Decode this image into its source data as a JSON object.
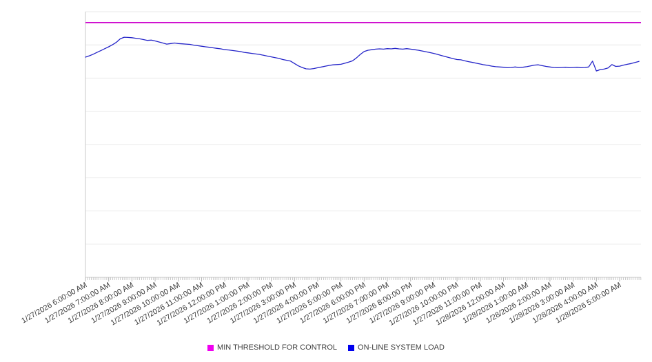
{
  "legend": {
    "items": [
      {
        "label": "MIN THRESHOLD FOR CONTROL",
        "swatch_color": "#f000f0"
      },
      {
        "label": "ON-LINE SYSTEM LOAD",
        "swatch_color": "#0000ee"
      }
    ]
  },
  "colors": {
    "threshold_line": "#cc00cc",
    "load_line": "#2222c8",
    "gridline": "#e8e8e8",
    "axis": "#c9c9c9",
    "tick": "#b5b5b5",
    "label_text": "#3c3c3c"
  },
  "chart_data": {
    "type": "line",
    "title": "",
    "xlabel": "",
    "ylabel": "",
    "x_tick_labels": [
      "1/27/2026 6:00:00 AM",
      "1/27/2026 7:00:00 AM",
      "1/27/2026 8:00:00 AM",
      "1/27/2026 9:00:00 AM",
      "1/27/2026 10:00:00 AM",
      "1/27/2026 11:00:00 AM",
      "1/27/2026 12:00:00 PM",
      "1/27/2026 1:00:00 PM",
      "1/27/2026 2:00:00 PM",
      "1/27/2026 3:00:00 PM",
      "1/27/2026 4:00:00 PM",
      "1/27/2026 5:00:00 PM",
      "1/27/2026 6:00:00 PM",
      "1/27/2026 7:00:00 PM",
      "1/27/2026 8:00:00 PM",
      "1/27/2026 9:00:00 PM",
      "1/27/2026 10:00:00 PM",
      "1/27/2026 11:00:00 PM",
      "1/28/2026 12:00:00 AM",
      "1/28/2026 1:00:00 AM",
      "1/28/2026 2:00:00 AM",
      "1/28/2026 3:00:00 AM",
      "1/28/2026 4:00:00 AM",
      "1/28/2026 5:00:00 AM"
    ],
    "x_label_rotation_deg": -30,
    "sample_interval_minutes": 10,
    "minor_tick_interval_minutes": 5,
    "ylim": [
      0,
      100
    ],
    "y_gridline_step": 12.5,
    "y_axis_labels_visible": false,
    "grid": "horizontal",
    "legend_position": "bottom",
    "series": [
      {
        "name": "MIN THRESHOLD FOR CONTROL",
        "type": "threshold",
        "value": 95.9
      },
      {
        "name": "ON-LINE SYSTEM LOAD",
        "type": "line",
        "values": [
          82.9,
          83.4,
          84.0,
          84.7,
          85.4,
          86.1,
          86.8,
          87.6,
          88.5,
          89.8,
          90.4,
          90.3,
          90.2,
          90.0,
          89.8,
          89.5,
          89.2,
          89.3,
          89.0,
          88.6,
          88.2,
          87.8,
          88.0,
          88.2,
          88.0,
          87.9,
          87.8,
          87.7,
          87.4,
          87.2,
          87.0,
          86.8,
          86.6,
          86.4,
          86.2,
          86.0,
          85.7,
          85.6,
          85.4,
          85.2,
          85.0,
          84.7,
          84.5,
          84.3,
          84.1,
          83.9,
          83.6,
          83.3,
          83.0,
          82.7,
          82.4,
          82.0,
          81.7,
          81.4,
          80.5,
          79.6,
          79.0,
          78.5,
          78.4,
          78.6,
          78.9,
          79.2,
          79.5,
          79.8,
          80.0,
          80.1,
          80.2,
          80.6,
          81.0,
          81.5,
          82.6,
          83.9,
          85.0,
          85.5,
          85.7,
          85.9,
          86.0,
          85.9,
          86.1,
          86.0,
          86.2,
          86.0,
          85.9,
          86.1,
          85.9,
          85.7,
          85.5,
          85.2,
          84.9,
          84.6,
          84.3,
          83.9,
          83.5,
          83.1,
          82.7,
          82.3,
          82.0,
          81.9,
          81.5,
          81.2,
          80.9,
          80.6,
          80.3,
          80.0,
          79.8,
          79.5,
          79.3,
          79.2,
          79.1,
          78.9,
          79.0,
          79.2,
          79.0,
          79.1,
          79.3,
          79.6,
          79.9,
          80.0,
          79.7,
          79.4,
          79.2,
          79.0,
          78.9,
          79.0,
          79.1,
          78.9,
          79.0,
          79.1,
          78.9,
          79.0,
          79.2,
          81.4,
          77.7,
          78.2,
          78.4,
          78.8,
          80.1,
          79.4,
          79.5,
          79.9,
          80.2,
          80.5,
          80.9,
          81.3
        ]
      }
    ]
  }
}
